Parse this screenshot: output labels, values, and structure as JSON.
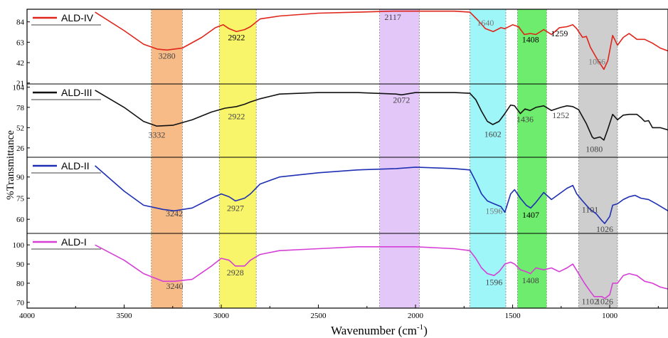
{
  "chart_data": {
    "type": "line",
    "xlabel": "Wavenumber (cm",
    "xlabel_sup": "-1",
    "xlabel_close": ")",
    "ylabel": "%Transmittance",
    "xlim": [
      4000,
      700
    ],
    "x_ticks": [
      4000,
      3500,
      3000,
      2500,
      2000,
      1500,
      1000
    ],
    "grid": false,
    "legend_placement": "top-left",
    "highlight_bands": [
      {
        "from": 3360,
        "to": 3200,
        "color": "#f4a460"
      },
      {
        "from": 3010,
        "to": 2820,
        "color": "#f7f13a"
      },
      {
        "from": 2185,
        "to": 1980,
        "color": "#d8b4f5"
      },
      {
        "from": 1720,
        "to": 1535,
        "color": "#7ff3f5"
      },
      {
        "from": 1475,
        "to": 1325,
        "color": "#3ce63c"
      },
      {
        "from": 1160,
        "to": 960,
        "color": "#bdbdbd"
      }
    ],
    "panels": [
      {
        "name": "ALD-IV",
        "color": "#e0251b",
        "ylim": [
          20,
          97
        ],
        "yticks": [
          21,
          42,
          63,
          84
        ],
        "points": [
          [
            3650,
            94
          ],
          [
            3500,
            75
          ],
          [
            3400,
            61
          ],
          [
            3330,
            56
          ],
          [
            3280,
            55
          ],
          [
            3200,
            57
          ],
          [
            3100,
            68
          ],
          [
            3030,
            78
          ],
          [
            2990,
            81
          ],
          [
            2960,
            77
          ],
          [
            2922,
            74
          ],
          [
            2880,
            76
          ],
          [
            2850,
            79
          ],
          [
            2800,
            87
          ],
          [
            2700,
            90
          ],
          [
            2500,
            93
          ],
          [
            2300,
            94
          ],
          [
            2117,
            95
          ],
          [
            2000,
            95
          ],
          [
            1800,
            95
          ],
          [
            1720,
            94
          ],
          [
            1680,
            86
          ],
          [
            1640,
            77
          ],
          [
            1600,
            74
          ],
          [
            1560,
            78
          ],
          [
            1540,
            77
          ],
          [
            1500,
            81
          ],
          [
            1470,
            79
          ],
          [
            1440,
            71
          ],
          [
            1408,
            72
          ],
          [
            1380,
            71
          ],
          [
            1340,
            76
          ],
          [
            1300,
            71
          ],
          [
            1259,
            78
          ],
          [
            1220,
            79
          ],
          [
            1190,
            81
          ],
          [
            1170,
            77
          ],
          [
            1140,
            68
          ],
          [
            1120,
            69
          ],
          [
            1100,
            58
          ],
          [
            1066,
            46
          ],
          [
            1030,
            35
          ],
          [
            1010,
            44
          ],
          [
            985,
            70
          ],
          [
            960,
            60
          ],
          [
            930,
            68
          ],
          [
            900,
            72
          ],
          [
            860,
            66
          ],
          [
            820,
            66
          ],
          [
            780,
            62
          ],
          [
            740,
            57
          ],
          [
            700,
            54
          ]
        ],
        "annotations": [
          {
            "text": "3280",
            "x": 3280,
            "y": 46,
            "color": "#444"
          },
          {
            "text": "2922",
            "x": 2922,
            "y": 65,
            "color": "#000"
          },
          {
            "text": "2117",
            "x": 2117,
            "y": 86,
            "color": "#444"
          },
          {
            "text": "1640",
            "x": 1640,
            "y": 80,
            "color": "#777"
          },
          {
            "text": "1408",
            "x": 1408,
            "y": 63,
            "color": "#000"
          },
          {
            "text": "1259",
            "x": 1259,
            "y": 69,
            "color": "#000"
          },
          {
            "text": "1066",
            "x": 1066,
            "y": 40,
            "color": "#777"
          }
        ]
      },
      {
        "name": "ALD-III",
        "color": "#111111",
        "ylim": [
          14,
          108
        ],
        "yticks": [
          26,
          52,
          78,
          104
        ],
        "points": [
          [
            3650,
            100
          ],
          [
            3500,
            78
          ],
          [
            3400,
            60
          ],
          [
            3332,
            54
          ],
          [
            3250,
            55
          ],
          [
            3150,
            62
          ],
          [
            3050,
            72
          ],
          [
            2980,
            77
          ],
          [
            2922,
            79
          ],
          [
            2880,
            82
          ],
          [
            2850,
            85
          ],
          [
            2800,
            89
          ],
          [
            2700,
            95
          ],
          [
            2500,
            97
          ],
          [
            2300,
            97
          ],
          [
            2100,
            95
          ],
          [
            2072,
            94
          ],
          [
            2000,
            97
          ],
          [
            1800,
            97
          ],
          [
            1720,
            96
          ],
          [
            1690,
            88
          ],
          [
            1660,
            73
          ],
          [
            1630,
            60
          ],
          [
            1602,
            56
          ],
          [
            1570,
            60
          ],
          [
            1540,
            70
          ],
          [
            1510,
            81
          ],
          [
            1490,
            80
          ],
          [
            1460,
            70
          ],
          [
            1436,
            76
          ],
          [
            1410,
            74
          ],
          [
            1380,
            78
          ],
          [
            1340,
            80
          ],
          [
            1300,
            74
          ],
          [
            1252,
            78
          ],
          [
            1220,
            80
          ],
          [
            1190,
            79
          ],
          [
            1160,
            75
          ],
          [
            1120,
            57
          ],
          [
            1090,
            40
          ],
          [
            1080,
            38
          ],
          [
            1050,
            40
          ],
          [
            1030,
            36
          ],
          [
            1010,
            50
          ],
          [
            985,
            69
          ],
          [
            960,
            62
          ],
          [
            930,
            68
          ],
          [
            900,
            69
          ],
          [
            860,
            69
          ],
          [
            840,
            65
          ],
          [
            820,
            60
          ],
          [
            800,
            61
          ],
          [
            780,
            52
          ],
          [
            740,
            52
          ],
          [
            700,
            49
          ]
        ],
        "annotations": [
          {
            "text": "3332",
            "x": 3332,
            "y": 39,
            "color": "#444"
          },
          {
            "text": "2922",
            "x": 2922,
            "y": 63,
            "color": "#444"
          },
          {
            "text": "2072",
            "x": 2072,
            "y": 84,
            "color": "#444"
          },
          {
            "text": "1602",
            "x": 1602,
            "y": 40,
            "color": "#444"
          },
          {
            "text": "1436",
            "x": 1436,
            "y": 59,
            "color": "#444"
          },
          {
            "text": "1252",
            "x": 1252,
            "y": 64,
            "color": "#444"
          },
          {
            "text": "1080",
            "x": 1080,
            "y": 21,
            "color": "#444"
          }
        ]
      },
      {
        "name": "ALD-II",
        "color": "#1f2fb4",
        "ylim": [
          50,
          104
        ],
        "yticks": [
          60,
          75,
          90
        ],
        "points": [
          [
            3650,
            98
          ],
          [
            3500,
            80
          ],
          [
            3400,
            70
          ],
          [
            3300,
            67
          ],
          [
            3242,
            66
          ],
          [
            3150,
            68
          ],
          [
            3050,
            75
          ],
          [
            3000,
            78
          ],
          [
            2960,
            76
          ],
          [
            2927,
            73
          ],
          [
            2880,
            75
          ],
          [
            2850,
            78
          ],
          [
            2800,
            85
          ],
          [
            2700,
            90
          ],
          [
            2500,
            93
          ],
          [
            2300,
            95
          ],
          [
            2100,
            96
          ],
          [
            2000,
            97
          ],
          [
            1800,
            96
          ],
          [
            1720,
            95
          ],
          [
            1690,
            87
          ],
          [
            1660,
            78
          ],
          [
            1630,
            73
          ],
          [
            1596,
            71
          ],
          [
            1560,
            69
          ],
          [
            1540,
            65
          ],
          [
            1510,
            78
          ],
          [
            1490,
            81
          ],
          [
            1460,
            75
          ],
          [
            1430,
            70
          ],
          [
            1407,
            68
          ],
          [
            1380,
            72
          ],
          [
            1340,
            79
          ],
          [
            1300,
            74
          ],
          [
            1260,
            78
          ],
          [
            1220,
            82
          ],
          [
            1190,
            84
          ],
          [
            1170,
            78
          ],
          [
            1140,
            73
          ],
          [
            1101,
            67
          ],
          [
            1070,
            64
          ],
          [
            1040,
            59
          ],
          [
            1026,
            57
          ],
          [
            1000,
            62
          ],
          [
            985,
            70
          ],
          [
            960,
            71
          ],
          [
            930,
            74
          ],
          [
            900,
            76
          ],
          [
            870,
            77
          ],
          [
            840,
            75
          ],
          [
            800,
            74
          ],
          [
            760,
            71
          ],
          [
            700,
            66
          ]
        ],
        "annotations": [
          {
            "text": "3242",
            "x": 3242,
            "y": 62,
            "color": "#444"
          },
          {
            "text": "2927",
            "x": 2927,
            "y": 66,
            "color": "#444"
          },
          {
            "text": "1596",
            "x": 1596,
            "y": 64,
            "color": "#777"
          },
          {
            "text": "1407",
            "x": 1407,
            "y": 61,
            "color": "#000"
          },
          {
            "text": "1101",
            "x": 1101,
            "y": 65,
            "color": "#444"
          },
          {
            "text": "1026",
            "x": 1026,
            "y": 51,
            "color": "#444"
          }
        ]
      },
      {
        "name": "ALD-I",
        "color": "#d63fd6",
        "ylim": [
          67,
          106
        ],
        "yticks": [
          70,
          80,
          90,
          100
        ],
        "points": [
          [
            3650,
            100
          ],
          [
            3500,
            92
          ],
          [
            3400,
            85
          ],
          [
            3300,
            81
          ],
          [
            3240,
            81
          ],
          [
            3150,
            82
          ],
          [
            3050,
            89
          ],
          [
            3000,
            93
          ],
          [
            2960,
            92
          ],
          [
            2928,
            89
          ],
          [
            2880,
            89
          ],
          [
            2850,
            92
          ],
          [
            2800,
            95
          ],
          [
            2700,
            97
          ],
          [
            2500,
            98
          ],
          [
            2300,
            99
          ],
          [
            2000,
            99
          ],
          [
            1800,
            98
          ],
          [
            1720,
            97
          ],
          [
            1690,
            93
          ],
          [
            1660,
            88
          ],
          [
            1630,
            85
          ],
          [
            1596,
            84
          ],
          [
            1570,
            86
          ],
          [
            1540,
            90
          ],
          [
            1510,
            91
          ],
          [
            1490,
            90
          ],
          [
            1460,
            87
          ],
          [
            1430,
            86
          ],
          [
            1408,
            85
          ],
          [
            1380,
            88
          ],
          [
            1340,
            87
          ],
          [
            1300,
            88
          ],
          [
            1260,
            86
          ],
          [
            1220,
            88
          ],
          [
            1190,
            90
          ],
          [
            1160,
            85
          ],
          [
            1130,
            80
          ],
          [
            1102,
            76
          ],
          [
            1080,
            73
          ],
          [
            1060,
            73
          ],
          [
            1040,
            73
          ],
          [
            1026,
            72
          ],
          [
            1000,
            74
          ],
          [
            985,
            80
          ],
          [
            960,
            80
          ],
          [
            930,
            84
          ],
          [
            900,
            85
          ],
          [
            860,
            84
          ],
          [
            820,
            81
          ],
          [
            780,
            80
          ],
          [
            740,
            78
          ],
          [
            700,
            77
          ]
        ],
        "annotations": [
          {
            "text": "3240",
            "x": 3240,
            "y": 77,
            "color": "#444"
          },
          {
            "text": "2928",
            "x": 2928,
            "y": 84,
            "color": "#444"
          },
          {
            "text": "1596",
            "x": 1596,
            "y": 79,
            "color": "#444"
          },
          {
            "text": "1408",
            "x": 1408,
            "y": 80,
            "color": "#444"
          },
          {
            "text": "1102",
            "x": 1102,
            "y": 69,
            "color": "#444"
          },
          {
            "text": "1026",
            "x": 1026,
            "y": 69,
            "color": "#444"
          }
        ]
      }
    ]
  }
}
